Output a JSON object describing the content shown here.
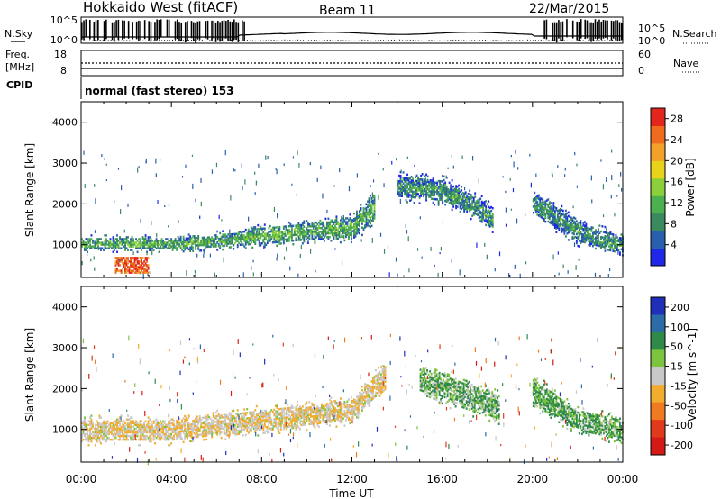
{
  "header": {
    "station": "Hokkaido West (fitACF)",
    "beam": "Beam 11",
    "date": "22/Mar/2015"
  },
  "noise_panel": {
    "left_label": "N.Sky",
    "right_label": "N.Search",
    "left_top_tick": "10^5",
    "left_bottom_tick": "10^0",
    "right_top_tick": "10^5",
    "right_bottom_tick": "10^0"
  },
  "freq_panel": {
    "label_line1": "Freq.",
    "label_line2": "[MHz]",
    "left_top_tick": "18",
    "left_bottom_tick": "8",
    "right_top_tick": "60",
    "right_bottom_tick": "0",
    "right_label": "Nave"
  },
  "cpid_panel": {
    "label": "CPID",
    "text": "normal (fast stereo) 153"
  },
  "time_axis": {
    "label": "Time UT",
    "ticks": [
      "00:00",
      "04:00",
      "08:00",
      "12:00",
      "16:00",
      "20:00",
      "00:00"
    ]
  },
  "colors": {
    "power": [
      "#1e28e6",
      "#2a5fb0",
      "#3a8a5e",
      "#4caf50",
      "#8bd03a",
      "#e8d21c",
      "#f2a22a",
      "#ef6b1e",
      "#e2261e"
    ],
    "velocity": [
      "#1f2fb8",
      "#2c6aa8",
      "#2f8a4a",
      "#7cc43e",
      "#c8c8c8",
      "#f2ac2e",
      "#ef7a1f",
      "#e03a1c",
      "#d41a16"
    ]
  },
  "chart_data": [
    {
      "type": "heatmap",
      "title": "",
      "xlabel": "",
      "ylabel": "Slant Range [km]",
      "xlim": [
        0,
        24
      ],
      "ylim": [
        200,
        4500
      ],
      "yticks": [
        "1000",
        "2000",
        "3000",
        "4000"
      ],
      "colorbar": {
        "label": "Power [dB]",
        "ticks": [
          "4",
          "8",
          "12",
          "16",
          "20",
          "24",
          "28"
        ],
        "range": [
          0,
          30
        ]
      },
      "bands": [
        {
          "t": [
            0.0,
            2.0,
            4.0,
            6.0,
            8.0,
            10.0,
            12.0,
            13.0
          ],
          "range_center": [
            1000,
            1000,
            1000,
            1050,
            1200,
            1300,
            1400,
            1900
          ],
          "range_halfwidth": [
            150,
            150,
            150,
            150,
            200,
            200,
            250,
            300
          ],
          "typical_power": 12
        },
        {
          "t": [
            14.0,
            16.0,
            17.5,
            18.2
          ],
          "range_center": [
            2400,
            2300,
            1900,
            1600
          ],
          "range_halfwidth": [
            250,
            250,
            250,
            250
          ],
          "typical_power": 10
        },
        {
          "t": [
            20.0,
            22.0,
            24.0
          ],
          "range_center": [
            2000,
            1300,
            950
          ],
          "range_halfwidth": [
            250,
            250,
            200
          ],
          "typical_power": 10
        }
      ],
      "features": [
        {
          "t": [
            1.5,
            3.0
          ],
          "range": [
            300,
            700
          ],
          "typical_power": 26
        }
      ]
    },
    {
      "type": "heatmap",
      "title": "",
      "xlabel": "Time UT",
      "ylabel": "Slant Range [km]",
      "xlim": [
        0,
        24
      ],
      "ylim": [
        200,
        4500
      ],
      "yticks": [
        "1000",
        "2000",
        "3000",
        "4000"
      ],
      "colorbar": {
        "label": "Velocity [m s^-1]",
        "ticks": [
          "200",
          "100",
          "50",
          "15",
          "-15",
          "-50",
          "-100",
          "-200"
        ],
        "range": [
          -250,
          250
        ]
      },
      "bands": [
        {
          "t": [
            0.0,
            4.0,
            8.0,
            12.0,
            13.5
          ],
          "range_center": [
            950,
            950,
            1200,
            1450,
            2300
          ],
          "range_halfwidth": [
            250,
            250,
            250,
            250,
            300
          ],
          "typical_velocity": -10
        },
        {
          "t": [
            15.0,
            17.0,
            18.5
          ],
          "range_center": [
            2200,
            1800,
            1500
          ],
          "range_halfwidth": [
            300,
            300,
            300
          ],
          "typical_velocity": 30
        },
        {
          "t": [
            20.0,
            22.0,
            24.0
          ],
          "range_center": [
            1900,
            1200,
            950
          ],
          "range_halfwidth": [
            300,
            250,
            250
          ],
          "typical_velocity": 35
        }
      ]
    }
  ]
}
